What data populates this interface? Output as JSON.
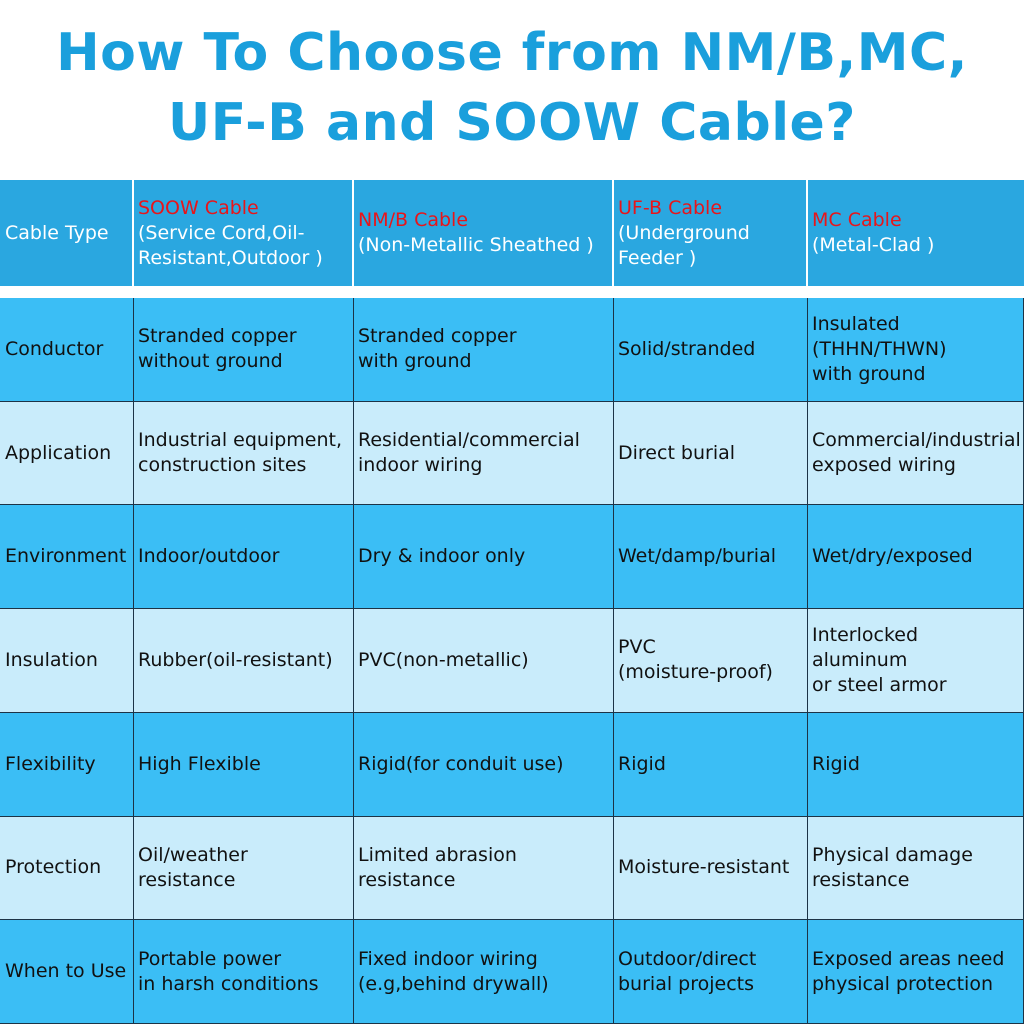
{
  "title": {
    "line1": "How To Choose from NM/B,MC,",
    "line2": "UF-B and SOOW Cable?"
  },
  "header": {
    "label": "Cable Type",
    "columns": [
      {
        "name": "SOOW Cable",
        "sub": "(Service Cord,Oil-\nResistant,Outdoor )"
      },
      {
        "name": "NM/B Cable",
        "sub": "(Non-Metallic Sheathed )"
      },
      {
        "name": "UF-B Cable",
        "sub": "(Underground\nFeeder )"
      },
      {
        "name": "MC Cable",
        "sub": "(Metal-Clad )"
      }
    ]
  },
  "rows": [
    {
      "label": "Conductor",
      "cells": [
        "Stranded copper\nwithout ground",
        "Stranded copper\nwith ground",
        "Solid/stranded",
        "Insulated\n(THHN/THWN)\nwith ground"
      ]
    },
    {
      "label": "Application",
      "cells": [
        "Industrial equipment,\nconstruction sites",
        "Residential/commercial\nindoor wiring",
        "Direct burial",
        "Commercial/industrial\nexposed wiring"
      ]
    },
    {
      "label": "Environment",
      "cells": [
        "Indoor/outdoor",
        "Dry & indoor only",
        "Wet/damp/burial",
        "Wet/dry/exposed"
      ]
    },
    {
      "label": "Insulation",
      "cells": [
        "Rubber(oil-resistant)",
        "PVC(non-metallic)",
        "PVC\n(moisture-proof)",
        "Interlocked\naluminum\nor steel armor"
      ]
    },
    {
      "label": "Flexibility",
      "cells": [
        "High Flexible",
        "Rigid(for conduit use)",
        "Rigid",
        "Rigid"
      ]
    },
    {
      "label": "Protection",
      "cells": [
        "Oil/weather\nresistance",
        "Limited abrasion\nresistance",
        "Moisture-resistant",
        "Physical damage\nresistance"
      ]
    },
    {
      "label": "When to Use",
      "cells": [
        "Portable power\nin harsh conditions",
        "Fixed indoor wiring\n(e.g,behind drywall)",
        "Outdoor/direct\nburial projects",
        "Exposed areas need\nphysical protection"
      ]
    }
  ],
  "colors": {
    "title": "#1a9fdc",
    "header_bg": "#2aa7e0",
    "header_name": "#e8151a",
    "row_dark": "#3bbef5",
    "row_light": "#c9ecfb"
  }
}
